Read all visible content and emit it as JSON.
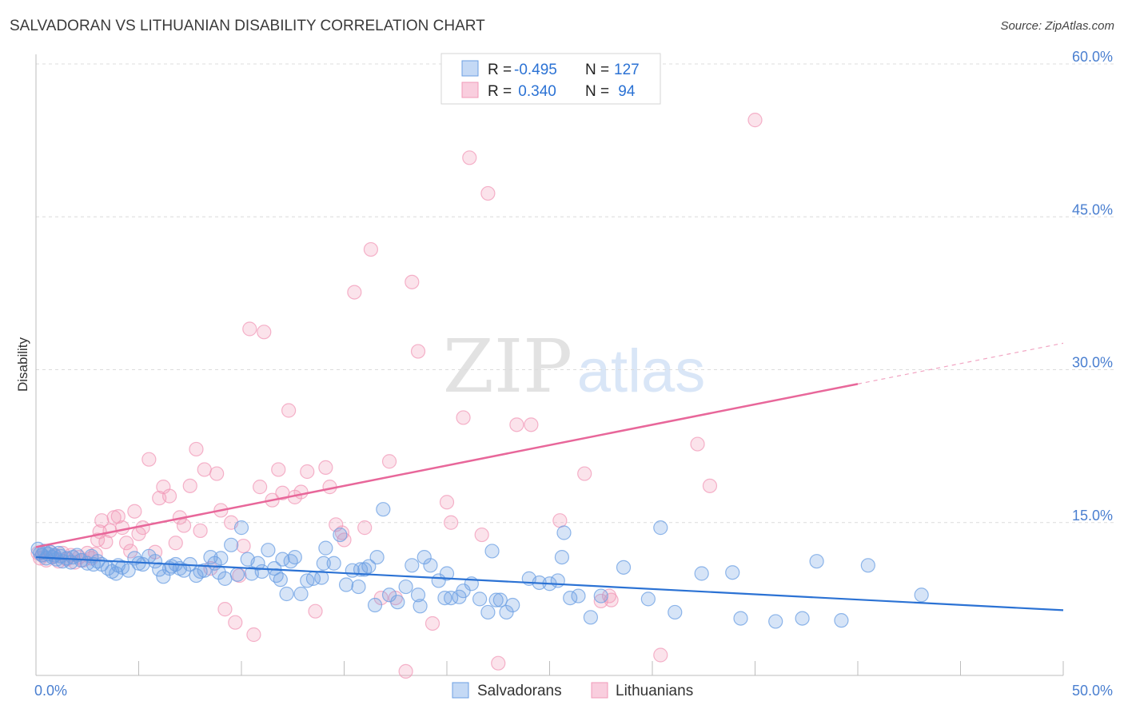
{
  "title": "SALVADORAN VS LITHUANIAN DISABILITY CORRELATION CHART",
  "source": "Source: ZipAtlas.com",
  "watermark": {
    "zip": "ZIP",
    "atlas": "atlas"
  },
  "colors": {
    "salvadorans": "#6b9fe3",
    "salvadorans_line": "#2b72d4",
    "lithuanians": "#f19ab8",
    "lithuanians_line": "#e8679a",
    "tick_label": "#4a7fd0",
    "grid": "#dcdcdc"
  },
  "legend_top": {
    "rows": [
      {
        "r_label": "R = ",
        "r_value": "-0.495",
        "n_label": "N = ",
        "n_value": "127"
      },
      {
        "r_label": "R = ",
        "r_value": " 0.340",
        "n_label": "N = ",
        "n_value": " 94"
      }
    ]
  },
  "chart_data": {
    "type": "scatter",
    "title": "SALVADORAN VS LITHUANIAN DISABILITY CORRELATION CHART",
    "xlabel": "",
    "ylabel": "Disability",
    "xlim": [
      0,
      50
    ],
    "ylim": [
      0,
      60
    ],
    "x_tick_labels": [
      "0.0%",
      "50.0%"
    ],
    "y_ticks": [
      15,
      30,
      45,
      60
    ],
    "y_tick_labels": [
      "15.0%",
      "30.0%",
      "45.0%",
      "60.0%"
    ],
    "grid": "horizontal dashed",
    "legend_position": "bottom-center",
    "series": [
      {
        "name": "Salvadorans",
        "r": -0.495,
        "n": 127,
        "trend": {
          "x": [
            0,
            50
          ],
          "y": [
            11.6,
            6.4
          ]
        },
        "points": [
          [
            0.1,
            12.4
          ],
          [
            0.2,
            12.0
          ],
          [
            0.3,
            11.8
          ],
          [
            0.4,
            12.2
          ],
          [
            0.5,
            11.5
          ],
          [
            0.6,
            11.9
          ],
          [
            0.7,
            12.1
          ],
          [
            0.8,
            11.6
          ],
          [
            0.9,
            11.8
          ],
          [
            1.0,
            11.4
          ],
          [
            1.1,
            12.0
          ],
          [
            1.2,
            11.7
          ],
          [
            1.3,
            11.2
          ],
          [
            1.5,
            11.5
          ],
          [
            1.7,
            11.1
          ],
          [
            1.8,
            11.6
          ],
          [
            2.0,
            11.8
          ],
          [
            2.2,
            11.3
          ],
          [
            2.5,
            11.0
          ],
          [
            2.7,
            11.7
          ],
          [
            3.0,
            11.2
          ],
          [
            3.2,
            10.9
          ],
          [
            3.5,
            10.5
          ],
          [
            3.7,
            10.2
          ],
          [
            4.0,
            10.8
          ],
          [
            4.2,
            10.6
          ],
          [
            4.5,
            10.3
          ],
          [
            4.8,
            11.5
          ],
          [
            5.0,
            11.0
          ],
          [
            5.2,
            10.9
          ],
          [
            5.5,
            11.7
          ],
          [
            5.8,
            11.2
          ],
          [
            6.0,
            10.4
          ],
          [
            6.2,
            9.7
          ],
          [
            6.5,
            10.5
          ],
          [
            6.8,
            10.9
          ],
          [
            7.0,
            10.5
          ],
          [
            7.2,
            10.3
          ],
          [
            7.5,
            10.9
          ],
          [
            7.8,
            9.8
          ],
          [
            8.0,
            10.2
          ],
          [
            8.2,
            10.3
          ],
          [
            8.5,
            11.6
          ],
          [
            8.7,
            11.0
          ],
          [
            9.0,
            11.5
          ],
          [
            9.2,
            9.5
          ],
          [
            9.5,
            12.8
          ],
          [
            9.8,
            9.9
          ],
          [
            10.0,
            14.5
          ],
          [
            10.3,
            11.4
          ],
          [
            10.5,
            10.0
          ],
          [
            10.8,
            11.0
          ],
          [
            11.0,
            10.2
          ],
          [
            11.3,
            12.3
          ],
          [
            11.6,
            10.5
          ],
          [
            11.9,
            9.4
          ],
          [
            12.2,
            8.0
          ],
          [
            12.4,
            11.2
          ],
          [
            12.6,
            11.6
          ],
          [
            12.9,
            8.0
          ],
          [
            13.2,
            9.3
          ],
          [
            13.5,
            9.5
          ],
          [
            13.9,
            9.6
          ],
          [
            14.1,
            12.5
          ],
          [
            14.5,
            11.0
          ],
          [
            14.8,
            13.8
          ],
          [
            15.1,
            8.9
          ],
          [
            15.4,
            10.3
          ],
          [
            15.7,
            8.7
          ],
          [
            16.0,
            10.4
          ],
          [
            16.2,
            10.7
          ],
          [
            16.6,
            11.6
          ],
          [
            16.9,
            16.3
          ],
          [
            17.2,
            7.9
          ],
          [
            17.6,
            7.2
          ],
          [
            18.0,
            8.7
          ],
          [
            18.3,
            10.8
          ],
          [
            18.6,
            7.9
          ],
          [
            18.9,
            11.6
          ],
          [
            19.2,
            10.8
          ],
          [
            19.6,
            9.3
          ],
          [
            19.9,
            7.6
          ],
          [
            20.2,
            7.6
          ],
          [
            20.6,
            7.7
          ],
          [
            20.8,
            8.3
          ],
          [
            21.2,
            9.0
          ],
          [
            21.6,
            7.5
          ],
          [
            22.0,
            6.2
          ],
          [
            22.2,
            12.2
          ],
          [
            22.6,
            7.4
          ],
          [
            22.9,
            6.2
          ],
          [
            23.2,
            6.9
          ],
          [
            24.0,
            9.5
          ],
          [
            25.0,
            9.0
          ],
          [
            25.4,
            9.3
          ],
          [
            25.6,
            11.6
          ],
          [
            25.7,
            14.0
          ],
          [
            26.0,
            7.6
          ],
          [
            26.4,
            7.8
          ],
          [
            27.0,
            5.7
          ],
          [
            27.5,
            7.8
          ],
          [
            28.6,
            10.6
          ],
          [
            29.8,
            7.5
          ],
          [
            30.4,
            14.5
          ],
          [
            31.1,
            6.2
          ],
          [
            32.4,
            10.0
          ],
          [
            33.9,
            10.1
          ],
          [
            34.3,
            5.6
          ],
          [
            36.0,
            5.3
          ],
          [
            37.3,
            5.6
          ],
          [
            38.0,
            11.2
          ],
          [
            39.2,
            5.4
          ],
          [
            40.5,
            10.8
          ],
          [
            43.1,
            7.9
          ],
          [
            16.5,
            6.9
          ],
          [
            24.5,
            9.1
          ],
          [
            12.0,
            11.4
          ],
          [
            14.0,
            11.0
          ],
          [
            15.8,
            10.4
          ],
          [
            18.7,
            6.8
          ],
          [
            6.6,
            10.7
          ],
          [
            8.9,
            10.1
          ],
          [
            3.9,
            10.0
          ],
          [
            2.8,
            10.9
          ],
          [
            11.7,
            9.8
          ],
          [
            20.0,
            10.0
          ],
          [
            22.4,
            7.4
          ]
        ]
      },
      {
        "name": "Lithuanians",
        "r": 0.34,
        "n": 94,
        "trend": {
          "x": [
            0,
            40
          ],
          "y": [
            12.6,
            28.6
          ]
        },
        "trend_dashed": {
          "x": [
            40,
            50
          ],
          "y": [
            28.6,
            32.6
          ]
        },
        "points": [
          [
            0.1,
            12.0
          ],
          [
            0.2,
            11.5
          ],
          [
            0.3,
            11.8
          ],
          [
            0.5,
            11.3
          ],
          [
            0.7,
            12.1
          ],
          [
            0.9,
            11.7
          ],
          [
            1.1,
            11.2
          ],
          [
            1.3,
            12.0
          ],
          [
            1.5,
            11.4
          ],
          [
            1.7,
            11.8
          ],
          [
            1.9,
            11.1
          ],
          [
            2.1,
            11.6
          ],
          [
            2.3,
            11.3
          ],
          [
            2.5,
            12.0
          ],
          [
            2.7,
            11.5
          ],
          [
            2.9,
            11.9
          ],
          [
            3.0,
            13.3
          ],
          [
            3.1,
            14.1
          ],
          [
            3.2,
            15.2
          ],
          [
            3.4,
            13.1
          ],
          [
            3.6,
            14.2
          ],
          [
            3.8,
            15.5
          ],
          [
            4.0,
            15.6
          ],
          [
            4.2,
            14.5
          ],
          [
            4.4,
            13.0
          ],
          [
            4.6,
            12.2
          ],
          [
            4.8,
            16.1
          ],
          [
            5.0,
            13.9
          ],
          [
            5.2,
            14.5
          ],
          [
            5.5,
            21.2
          ],
          [
            5.8,
            12.1
          ],
          [
            6.0,
            17.4
          ],
          [
            6.2,
            18.5
          ],
          [
            6.5,
            17.6
          ],
          [
            6.8,
            13.0
          ],
          [
            7.0,
            15.5
          ],
          [
            7.2,
            14.7
          ],
          [
            7.5,
            18.6
          ],
          [
            7.8,
            22.2
          ],
          [
            8.0,
            14.2
          ],
          [
            8.2,
            20.2
          ],
          [
            8.5,
            10.5
          ],
          [
            8.8,
            19.8
          ],
          [
            9.0,
            16.2
          ],
          [
            9.2,
            6.5
          ],
          [
            9.5,
            15.0
          ],
          [
            9.7,
            5.2
          ],
          [
            9.9,
            9.8
          ],
          [
            10.1,
            12.7
          ],
          [
            10.4,
            34.0
          ],
          [
            10.6,
            4.0
          ],
          [
            10.9,
            18.5
          ],
          [
            11.1,
            33.7
          ],
          [
            11.5,
            17.2
          ],
          [
            11.8,
            20.2
          ],
          [
            12.0,
            17.9
          ],
          [
            12.3,
            26.0
          ],
          [
            12.6,
            17.5
          ],
          [
            12.9,
            18.0
          ],
          [
            13.2,
            20.0
          ],
          [
            13.6,
            6.3
          ],
          [
            14.1,
            20.4
          ],
          [
            14.3,
            18.5
          ],
          [
            14.6,
            14.8
          ],
          [
            15.0,
            13.3
          ],
          [
            15.5,
            37.6
          ],
          [
            16.0,
            14.5
          ],
          [
            16.3,
            41.8
          ],
          [
            16.8,
            7.6
          ],
          [
            17.2,
            21.0
          ],
          [
            17.5,
            7.6
          ],
          [
            18.0,
            0.4
          ],
          [
            18.3,
            38.6
          ],
          [
            18.6,
            31.8
          ],
          [
            19.3,
            5.1
          ],
          [
            20.0,
            17.0
          ],
          [
            20.2,
            15.0
          ],
          [
            20.8,
            25.3
          ],
          [
            21.1,
            50.8
          ],
          [
            21.7,
            13.8
          ],
          [
            22.0,
            47.3
          ],
          [
            22.5,
            1.2
          ],
          [
            23.4,
            24.6
          ],
          [
            24.1,
            24.6
          ],
          [
            25.5,
            15.2
          ],
          [
            26.7,
            19.8
          ],
          [
            27.5,
            7.3
          ],
          [
            27.9,
            7.8
          ],
          [
            28.0,
            7.4
          ],
          [
            32.2,
            22.7
          ],
          [
            32.8,
            18.6
          ],
          [
            35.0,
            54.5
          ],
          [
            30.4,
            2.0
          ],
          [
            14.9,
            14.0
          ]
        ]
      }
    ]
  }
}
